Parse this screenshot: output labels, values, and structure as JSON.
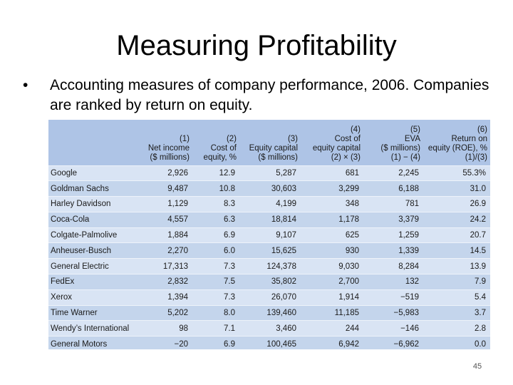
{
  "slide": {
    "title": "Measuring Profitability",
    "bullet": "Accounting measures of company performance, 2006. Companies are ranked by return on equity.",
    "page_number": "45"
  },
  "table": {
    "headers": [
      {
        "lines": [
          ""
        ]
      },
      {
        "lines": [
          "(1)",
          "Net income",
          "($ millions)"
        ]
      },
      {
        "lines": [
          "(2)",
          "Cost of",
          "equity, %"
        ]
      },
      {
        "lines": [
          "(3)",
          "Equity capital",
          "($ millions)"
        ]
      },
      {
        "lines": [
          "(4)",
          "Cost of",
          "equity capital",
          "(2) × (3)"
        ]
      },
      {
        "lines": [
          "(5)",
          "EVA",
          "($ millions)",
          "(1) − (4)"
        ]
      },
      {
        "lines": [
          "(6)",
          "Return on",
          "equity (ROE), %",
          "(1)/(3)"
        ]
      }
    ],
    "rows": [
      [
        "Google",
        "2,926",
        "12.9",
        "5,287",
        "681",
        "2,245",
        "55.3%"
      ],
      [
        "Goldman Sachs",
        "9,487",
        "10.8",
        "30,603",
        "3,299",
        "6,188",
        "31.0"
      ],
      [
        "Harley Davidson",
        "1,129",
        "8.3",
        "4,199",
        "348",
        "781",
        "26.9"
      ],
      [
        "Coca-Cola",
        "4,557",
        "6.3",
        "18,814",
        "1,178",
        "3,379",
        "24.2"
      ],
      [
        "Colgate-Palmolive",
        "1,884",
        "6.9",
        "9,107",
        "625",
        "1,259",
        "20.7"
      ],
      [
        "Anheuser-Busch",
        "2,270",
        "6.0",
        "15,625",
        "930",
        "1,339",
        "14.5"
      ],
      [
        "General Electric",
        "17,313",
        "7.3",
        "124,378",
        "9,030",
        "8,284",
        "13.9"
      ],
      [
        "FedEx",
        "2,832",
        "7.5",
        "35,802",
        "2,700",
        "132",
        "7.9"
      ],
      [
        "Xerox",
        "1,394",
        "7.3",
        "26,070",
        "1,914",
        "−519",
        "5.4"
      ],
      [
        "Time Warner",
        "5,202",
        "8.0",
        "139,460",
        "11,185",
        "−5,983",
        "3.7"
      ],
      [
        "Wendy’s International",
        "98",
        "7.1",
        "3,460",
        "244",
        "−146",
        "2.8"
      ],
      [
        "General Motors",
        "−20",
        "6.9",
        "100,465",
        "6,942",
        "−6,962",
        "0.0"
      ]
    ]
  }
}
